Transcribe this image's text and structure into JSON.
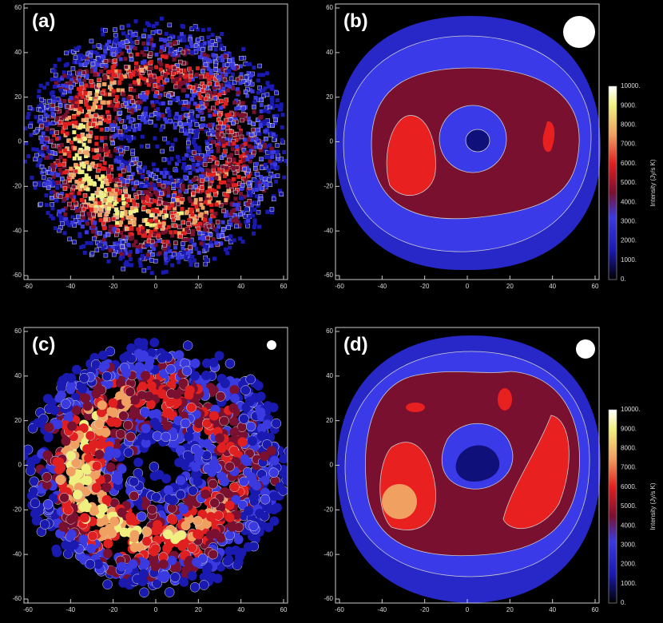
{
  "panels": [
    {
      "label": "(a)"
    },
    {
      "label": "(b)"
    },
    {
      "label": "(c)"
    },
    {
      "label": "(d)"
    }
  ],
  "x_ticks": [
    "-60",
    "-40",
    "-20",
    "0",
    "20",
    "40",
    "60"
  ],
  "y_ticks": [
    "60",
    "40",
    "20",
    "0",
    "-20",
    "-40",
    "-60"
  ],
  "colorbar": {
    "title": "Intensity (Jy/s K)",
    "labels": [
      "10000.",
      "9000.",
      "8000.",
      "7000.",
      "6000.",
      "5000.",
      "4000.",
      "3000.",
      "2000.",
      "1000.",
      "0."
    ]
  }
}
